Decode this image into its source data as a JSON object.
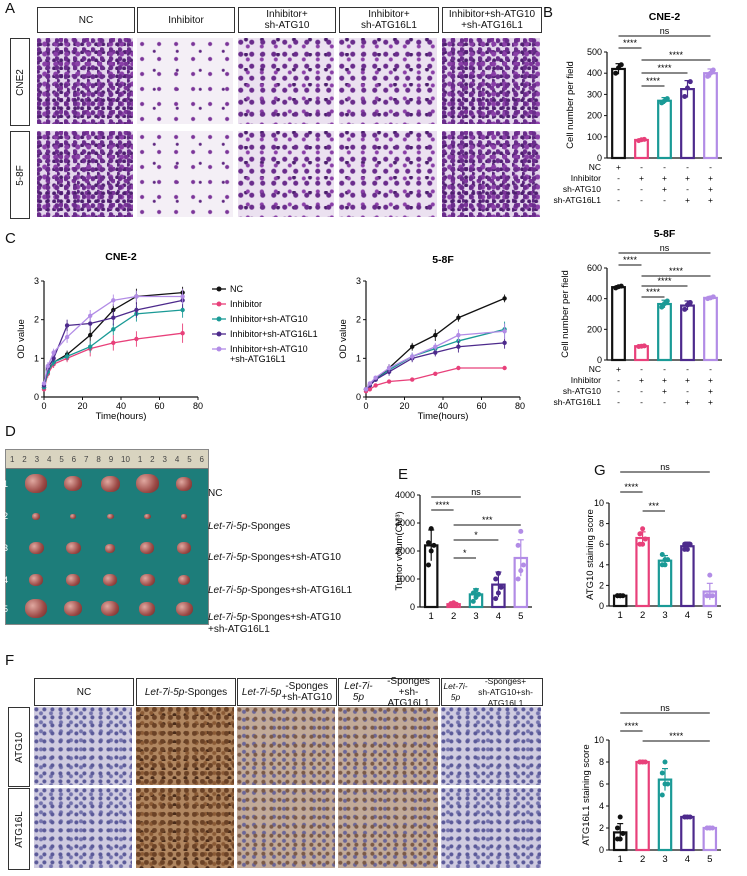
{
  "panel_letters": {
    "A": "A",
    "B": "B",
    "C": "C",
    "D": "D",
    "E": "E",
    "F": "F",
    "G": "G"
  },
  "panel_a": {
    "columns": [
      "NC",
      "Inhibitor",
      "Inhibitor+\nsh-ATG10",
      "Inhibitor+\nsh-ATG16L1",
      "Inhibitor+sh-ATG10\n+sh-ATG16L1"
    ],
    "rows": [
      "CNE2",
      "5-8F"
    ]
  },
  "panel_f": {
    "columns": [
      {
        "it": "",
        "rest": "NC"
      },
      {
        "it": "Let-7i-5p",
        "rest": "-Sponges"
      },
      {
        "it": "Let-7i-5p",
        "rest": "-Sponges\n+sh-ATG10"
      },
      {
        "it": "Let-7i-5p",
        "rest": "-Sponges\n+sh-ATG16L1"
      },
      {
        "it": "Let-7i-5p",
        "rest": "-Sponges+\nsh-ATG10+sh-ATG16L1"
      }
    ],
    "rows": [
      "ATG10",
      "ATG16L"
    ]
  },
  "panel_d": {
    "ruler_numbers": [
      "1",
      "2",
      "3",
      "4",
      "5",
      "6",
      "7",
      "8",
      "9",
      "10",
      "1",
      "2",
      "3",
      "4",
      "5",
      "6"
    ],
    "row_numbers": [
      "1",
      "2",
      "3",
      "4",
      "5"
    ],
    "row_labels": [
      {
        "it": "",
        "rest": "NC"
      },
      {
        "it": "Let-7i-5p",
        "rest": "-Sponges"
      },
      {
        "it": "Let-7i-5p",
        "rest": "-Sponges+sh-ATG10"
      },
      {
        "it": "Let-7i-5p",
        "rest": "-Sponges+sh-ATG16L1"
      },
      {
        "it": "Let-7i-5p",
        "rest": "-Sponges+sh-ATG10\n+sh-ATG16L1"
      }
    ],
    "tumor_counts": [
      5,
      5,
      5,
      5,
      5
    ]
  },
  "matrix": {
    "row_names": [
      "NC",
      "Inhibitor",
      "sh-ATG10",
      "sh-ATG16L1"
    ],
    "cells": [
      [
        "+",
        "-",
        "-",
        "-",
        "-"
      ],
      [
        "-",
        "+",
        "+",
        "+",
        "+"
      ],
      [
        "-",
        "-",
        "+",
        "-",
        "+"
      ],
      [
        "-",
        "-",
        "-",
        "+",
        "+"
      ]
    ]
  },
  "colors": {
    "black": "#111111",
    "pink": "#e8407a",
    "teal": "#1a9a96",
    "purple": "#4d2a8c",
    "lilac": "#b28ce6"
  },
  "chart_data": [
    {
      "id": "B1",
      "type": "bar",
      "title": "CNE-2",
      "ylabel": "Cell number per field",
      "ylim": [
        0,
        500
      ],
      "yticks": [
        0,
        100,
        200,
        300,
        400,
        500
      ],
      "categories": [
        "1",
        "2",
        "3",
        "4",
        "5"
      ],
      "values": [
        420,
        85,
        270,
        325,
        400
      ],
      "errors": [
        25,
        5,
        15,
        40,
        20
      ],
      "points": [
        [
          400,
          425,
          440
        ],
        [
          82,
          86,
          88
        ],
        [
          260,
          270,
          280
        ],
        [
          290,
          330,
          360
        ],
        [
          385,
          400,
          415
        ]
      ],
      "brackets": [
        {
          "a": 0,
          "b": 4,
          "label": "ns"
        },
        {
          "a": 0,
          "b": 1,
          "label": "****"
        },
        {
          "a": 1,
          "b": 4,
          "label": "****"
        },
        {
          "a": 1,
          "b": 3,
          "label": "****"
        },
        {
          "a": 1,
          "b": 2,
          "label": "****"
        }
      ]
    },
    {
      "id": "B2",
      "type": "bar",
      "title": "5-8F",
      "ylabel": "Cell number per field",
      "ylim": [
        0,
        600
      ],
      "yticks": [
        0,
        200,
        400,
        600
      ],
      "categories": [
        "1",
        "2",
        "3",
        "4",
        "5"
      ],
      "values": [
        475,
        90,
        365,
        355,
        405
      ],
      "errors": [
        10,
        5,
        25,
        30,
        10
      ],
      "points": [
        [
          470,
          478,
          482
        ],
        [
          88,
          90,
          92
        ],
        [
          345,
          368,
          385
        ],
        [
          330,
          360,
          375
        ],
        [
          400,
          405,
          412
        ]
      ],
      "brackets": [
        {
          "a": 0,
          "b": 4,
          "label": "ns"
        },
        {
          "a": 0,
          "b": 1,
          "label": "****"
        },
        {
          "a": 1,
          "b": 4,
          "label": "****"
        },
        {
          "a": 1,
          "b": 3,
          "label": "****"
        },
        {
          "a": 1,
          "b": 2,
          "label": "****"
        }
      ]
    },
    {
      "id": "C1",
      "type": "line",
      "title": "CNE-2",
      "xlabel": "Time(hours)",
      "ylabel": "OD value",
      "xlim": [
        0,
        80
      ],
      "ylim": [
        0,
        3
      ],
      "xticks": [
        0,
        20,
        40,
        60,
        80
      ],
      "yticks": [
        0,
        1,
        2,
        3
      ],
      "x": [
        0,
        2,
        5,
        12,
        24,
        36,
        48,
        72
      ],
      "series": [
        {
          "name": "NC",
          "values": [
            0.25,
            0.7,
            0.9,
            1.1,
            1.6,
            2.25,
            2.6,
            2.7
          ],
          "err": [
            0.05,
            0.1,
            0.1,
            0.1,
            0.15,
            0.15,
            0.2,
            0.15
          ]
        },
        {
          "name": "Inhibitor",
          "values": [
            0.2,
            0.6,
            0.85,
            1.0,
            1.25,
            1.4,
            1.5,
            1.65
          ],
          "err": [
            0.05,
            0.1,
            0.1,
            0.1,
            0.2,
            0.2,
            0.2,
            0.25
          ]
        },
        {
          "name": "Inhibitor+sh-ATG10",
          "values": [
            0.25,
            0.65,
            0.9,
            1.05,
            1.3,
            1.75,
            2.15,
            2.25
          ],
          "err": [
            0.05,
            0.1,
            0.1,
            0.1,
            0.15,
            0.15,
            0.2,
            0.2
          ]
        },
        {
          "name": "Inhibitor+sh-ATG16L1",
          "values": [
            0.3,
            0.75,
            1.0,
            1.85,
            1.9,
            2.05,
            2.25,
            2.5
          ],
          "err": [
            0.05,
            0.1,
            0.1,
            0.15,
            0.15,
            0.2,
            0.2,
            0.2
          ]
        },
        {
          "name": "Inhibitor+sh-ATG10\n+sh-ATG16L1",
          "values": [
            0.35,
            0.8,
            1.15,
            1.55,
            2.1,
            2.5,
            2.6,
            2.6
          ],
          "err": [
            0.05,
            0.1,
            0.1,
            0.15,
            0.15,
            0.15,
            0.15,
            0.2
          ]
        }
      ]
    },
    {
      "id": "C2",
      "type": "line",
      "title": "5-8F",
      "xlabel": "Time(hours)",
      "ylabel": "OD value",
      "xlim": [
        0,
        80
      ],
      "ylim": [
        0,
        3
      ],
      "xticks": [
        0,
        20,
        40,
        60,
        80
      ],
      "yticks": [
        0,
        1,
        2,
        3
      ],
      "x": [
        0,
        2,
        5,
        12,
        24,
        36,
        48,
        72
      ],
      "series": [
        {
          "name": "NC",
          "values": [
            0.2,
            0.3,
            0.45,
            0.75,
            1.3,
            1.6,
            2.05,
            2.55
          ],
          "err": [
            0.03,
            0.05,
            0.05,
            0.1,
            0.1,
            0.15,
            0.1,
            0.1
          ]
        },
        {
          "name": "Inhibitor",
          "values": [
            0.15,
            0.2,
            0.3,
            0.4,
            0.45,
            0.6,
            0.75,
            0.75
          ],
          "err": [
            0.02,
            0.03,
            0.03,
            0.05,
            0.05,
            0.05,
            0.05,
            0.05
          ]
        },
        {
          "name": "Inhibitor+sh-ATG10",
          "values": [
            0.2,
            0.3,
            0.45,
            0.7,
            1.05,
            1.25,
            1.45,
            1.75
          ],
          "err": [
            0.03,
            0.05,
            0.05,
            0.1,
            0.1,
            0.1,
            0.15,
            0.2
          ]
        },
        {
          "name": "Inhibitor+sh-ATG16L1",
          "values": [
            0.2,
            0.3,
            0.45,
            0.65,
            1.0,
            1.15,
            1.3,
            1.4
          ],
          "err": [
            0.03,
            0.05,
            0.05,
            0.1,
            0.1,
            0.1,
            0.15,
            0.15
          ]
        },
        {
          "name": "Inhibitor+sh-ATG10\n+sh-ATG16L1",
          "values": [
            0.2,
            0.35,
            0.5,
            0.75,
            1.05,
            1.3,
            1.6,
            1.7
          ],
          "err": [
            0.03,
            0.05,
            0.05,
            0.1,
            0.1,
            0.1,
            0.15,
            0.2
          ]
        }
      ]
    },
    {
      "id": "E",
      "type": "bar",
      "title": "",
      "ylabel": "Tumor volum(CM³)",
      "ylim": [
        0,
        4000
      ],
      "yticks": [
        0,
        1000,
        2000,
        3000,
        4000
      ],
      "categories": [
        "1",
        "2",
        "3",
        "4",
        "5"
      ],
      "values": [
        2200,
        100,
        450,
        800,
        1750
      ],
      "errors": [
        550,
        40,
        200,
        450,
        650
      ],
      "points": [
        [
          1500,
          2000,
          2200,
          2300,
          2800
        ],
        [
          60,
          80,
          100,
          120,
          150
        ],
        [
          200,
          350,
          450,
          500,
          600
        ],
        [
          300,
          500,
          700,
          1000,
          1200
        ],
        [
          1000,
          1300,
          1500,
          2200,
          2700
        ]
      ],
      "brackets": [
        {
          "a": 0,
          "b": 4,
          "label": "ns"
        },
        {
          "a": 0,
          "b": 1,
          "label": "****"
        },
        {
          "a": 1,
          "b": 4,
          "label": "***"
        },
        {
          "a": 1,
          "b": 3,
          "label": "*"
        },
        {
          "a": 1,
          "b": 2,
          "label": "*"
        }
      ]
    },
    {
      "id": "G1",
      "type": "bar",
      "title": "",
      "ylabel": "ATG10 staining score",
      "ylim": [
        0,
        10
      ],
      "yticks": [
        0,
        2,
        4,
        6,
        8,
        10
      ],
      "categories": [
        "1",
        "2",
        "3",
        "4",
        "5"
      ],
      "values": [
        1.0,
        6.6,
        4.4,
        5.8,
        1.4
      ],
      "errors": [
        0.05,
        0.6,
        0.5,
        0.4,
        0.8
      ],
      "points": [
        [
          1,
          1,
          1,
          1,
          1
        ],
        [
          6,
          6,
          6.5,
          7,
          7.5
        ],
        [
          4,
          4,
          4.5,
          5,
          4.5
        ],
        [
          5.5,
          5.5,
          6,
          6,
          6
        ],
        [
          1,
          1,
          1,
          1,
          3
        ]
      ],
      "brackets": [
        {
          "a": 0,
          "b": 4,
          "label": "ns"
        },
        {
          "a": 0,
          "b": 1,
          "label": "****"
        },
        {
          "a": 1,
          "b": 2,
          "label": "***"
        }
      ]
    },
    {
      "id": "G2",
      "type": "bar",
      "title": "",
      "ylabel": "ATG16L1 staining score",
      "ylim": [
        0,
        10
      ],
      "yticks": [
        0,
        2,
        4,
        6,
        8,
        10
      ],
      "categories": [
        "1",
        "2",
        "3",
        "4",
        "5"
      ],
      "values": [
        1.6,
        8.0,
        6.4,
        3.0,
        2.0
      ],
      "errors": [
        0.8,
        0.05,
        1.0,
        0.05,
        0.05
      ],
      "points": [
        [
          1,
          1,
          1.5,
          2,
          3
        ],
        [
          8,
          8,
          8,
          8,
          8
        ],
        [
          5,
          6,
          6,
          7,
          8
        ],
        [
          3,
          3,
          3,
          3,
          3
        ],
        [
          2,
          2,
          2,
          2,
          2
        ]
      ],
      "brackets": [
        {
          "a": 0,
          "b": 4,
          "label": "ns"
        },
        {
          "a": 0,
          "b": 1,
          "label": "****"
        },
        {
          "a": 1,
          "b": 4,
          "label": "****"
        }
      ]
    }
  ]
}
